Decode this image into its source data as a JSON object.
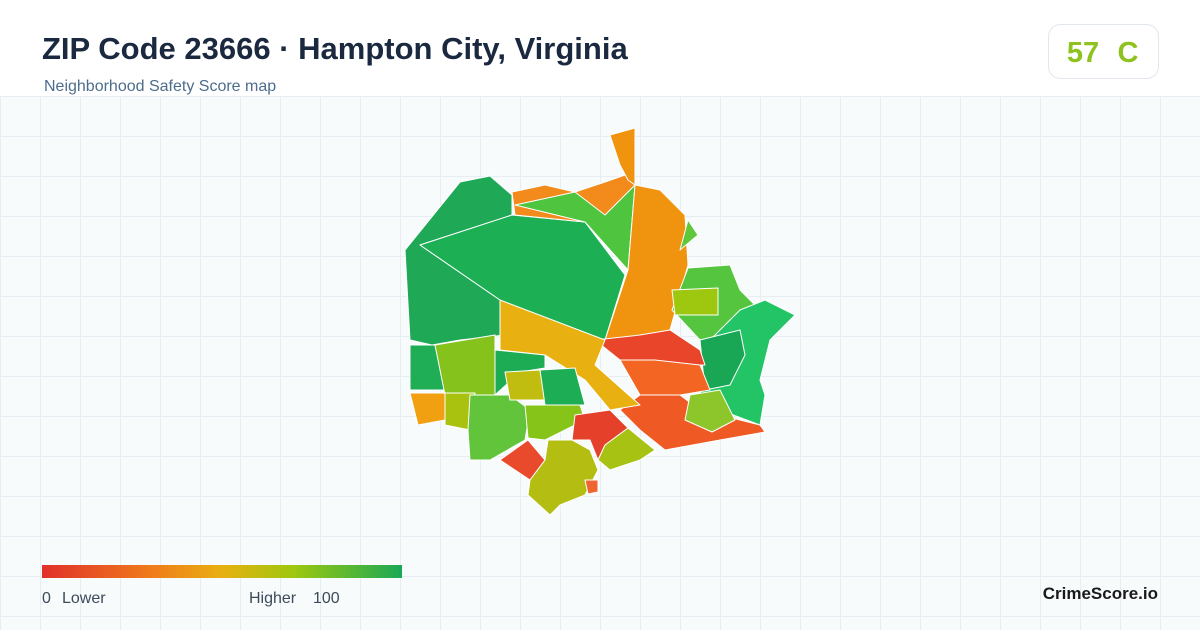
{
  "header": {
    "title": "ZIP Code 23666 · Hampton City, Virginia",
    "subtitle": "Neighborhood Safety Score map"
  },
  "score": {
    "value": "57",
    "grade": "C"
  },
  "legend": {
    "min": "0",
    "min_label": "Lower",
    "max_label": "Higher",
    "max": "100"
  },
  "brand": "CrimeScore.io"
}
